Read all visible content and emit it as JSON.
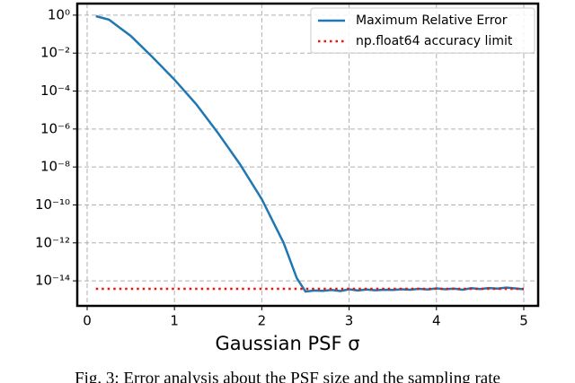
{
  "chart_data": {
    "type": "line",
    "xlabel": "Gaussian PSF σ",
    "caption": "Fig. 3: Error analysis about the PSF size and the sampling rate",
    "x": [
      0.1,
      0.25,
      0.5,
      0.75,
      1.0,
      1.25,
      1.5,
      1.75,
      2.0,
      2.25,
      2.4,
      2.5,
      2.6,
      2.7,
      2.8,
      2.9,
      3.0,
      3.1,
      3.2,
      3.3,
      3.4,
      3.5,
      3.6,
      3.7,
      3.8,
      3.9,
      4.0,
      4.1,
      4.2,
      4.3,
      4.4,
      4.5,
      4.6,
      4.7,
      4.8,
      4.9,
      5.0
    ],
    "series": [
      {
        "name": "Maximum Relative Error",
        "color": "#1f77b4",
        "values": [
          0.89,
          0.58,
          0.08,
          0.006,
          0.0004,
          2e-05,
          6e-07,
          1.4e-08,
          2e-10,
          1e-12,
          1.4e-14,
          2.7e-15,
          3.1e-15,
          3e-15,
          3.3e-15,
          2.9e-15,
          3.6e-15,
          3.1e-15,
          3.5e-15,
          3.2e-15,
          3.4e-15,
          3.3e-15,
          3.6e-15,
          3.4e-15,
          3.8e-15,
          3.5e-15,
          4e-15,
          3.6e-15,
          3.9e-15,
          3.4e-15,
          4.1e-15,
          3.7e-15,
          4.2e-15,
          3.9e-15,
          4.4e-15,
          4e-15,
          3.6e-15
        ]
      },
      {
        "name": "np.float64 accuracy limit",
        "color": "#e8160c",
        "dotted": true,
        "values": [
          3.8e-15,
          3.8e-15,
          3.8e-15,
          3.8e-15,
          3.8e-15,
          3.8e-15,
          3.8e-15,
          3.8e-15,
          3.8e-15,
          3.8e-15,
          3.8e-15,
          3.8e-15,
          3.8e-15,
          3.8e-15,
          3.8e-15,
          3.8e-15,
          3.8e-15,
          3.8e-15,
          3.8e-15,
          3.8e-15,
          3.8e-15,
          3.8e-15,
          3.8e-15,
          3.8e-15,
          3.8e-15,
          3.8e-15,
          3.8e-15,
          3.8e-15,
          3.8e-15,
          3.8e-15,
          3.8e-15,
          3.8e-15,
          3.8e-15,
          3.8e-15,
          3.8e-15,
          3.8e-15,
          3.8e-15
        ]
      }
    ],
    "xlim": [
      -0.113,
      5.165
    ],
    "xticks": [
      0,
      1,
      2,
      3,
      4,
      5
    ],
    "ylim": [
      4.8e-16,
      4.07
    ],
    "ylog": true,
    "yticks": [
      {
        "value": 1,
        "label": "10⁰"
      },
      {
        "value": 0.01,
        "label": "10⁻²"
      },
      {
        "value": 0.0001,
        "label": "10⁻⁴"
      },
      {
        "value": 1e-06,
        "label": "10⁻⁶"
      },
      {
        "value": 1e-08,
        "label": "10⁻⁸"
      },
      {
        "value": 1e-10,
        "label": "10⁻¹⁰"
      },
      {
        "value": 1e-12,
        "label": "10⁻¹²"
      },
      {
        "value": 1e-14,
        "label": "10⁻¹⁴"
      }
    ],
    "grid": true,
    "legend": "upper right"
  }
}
